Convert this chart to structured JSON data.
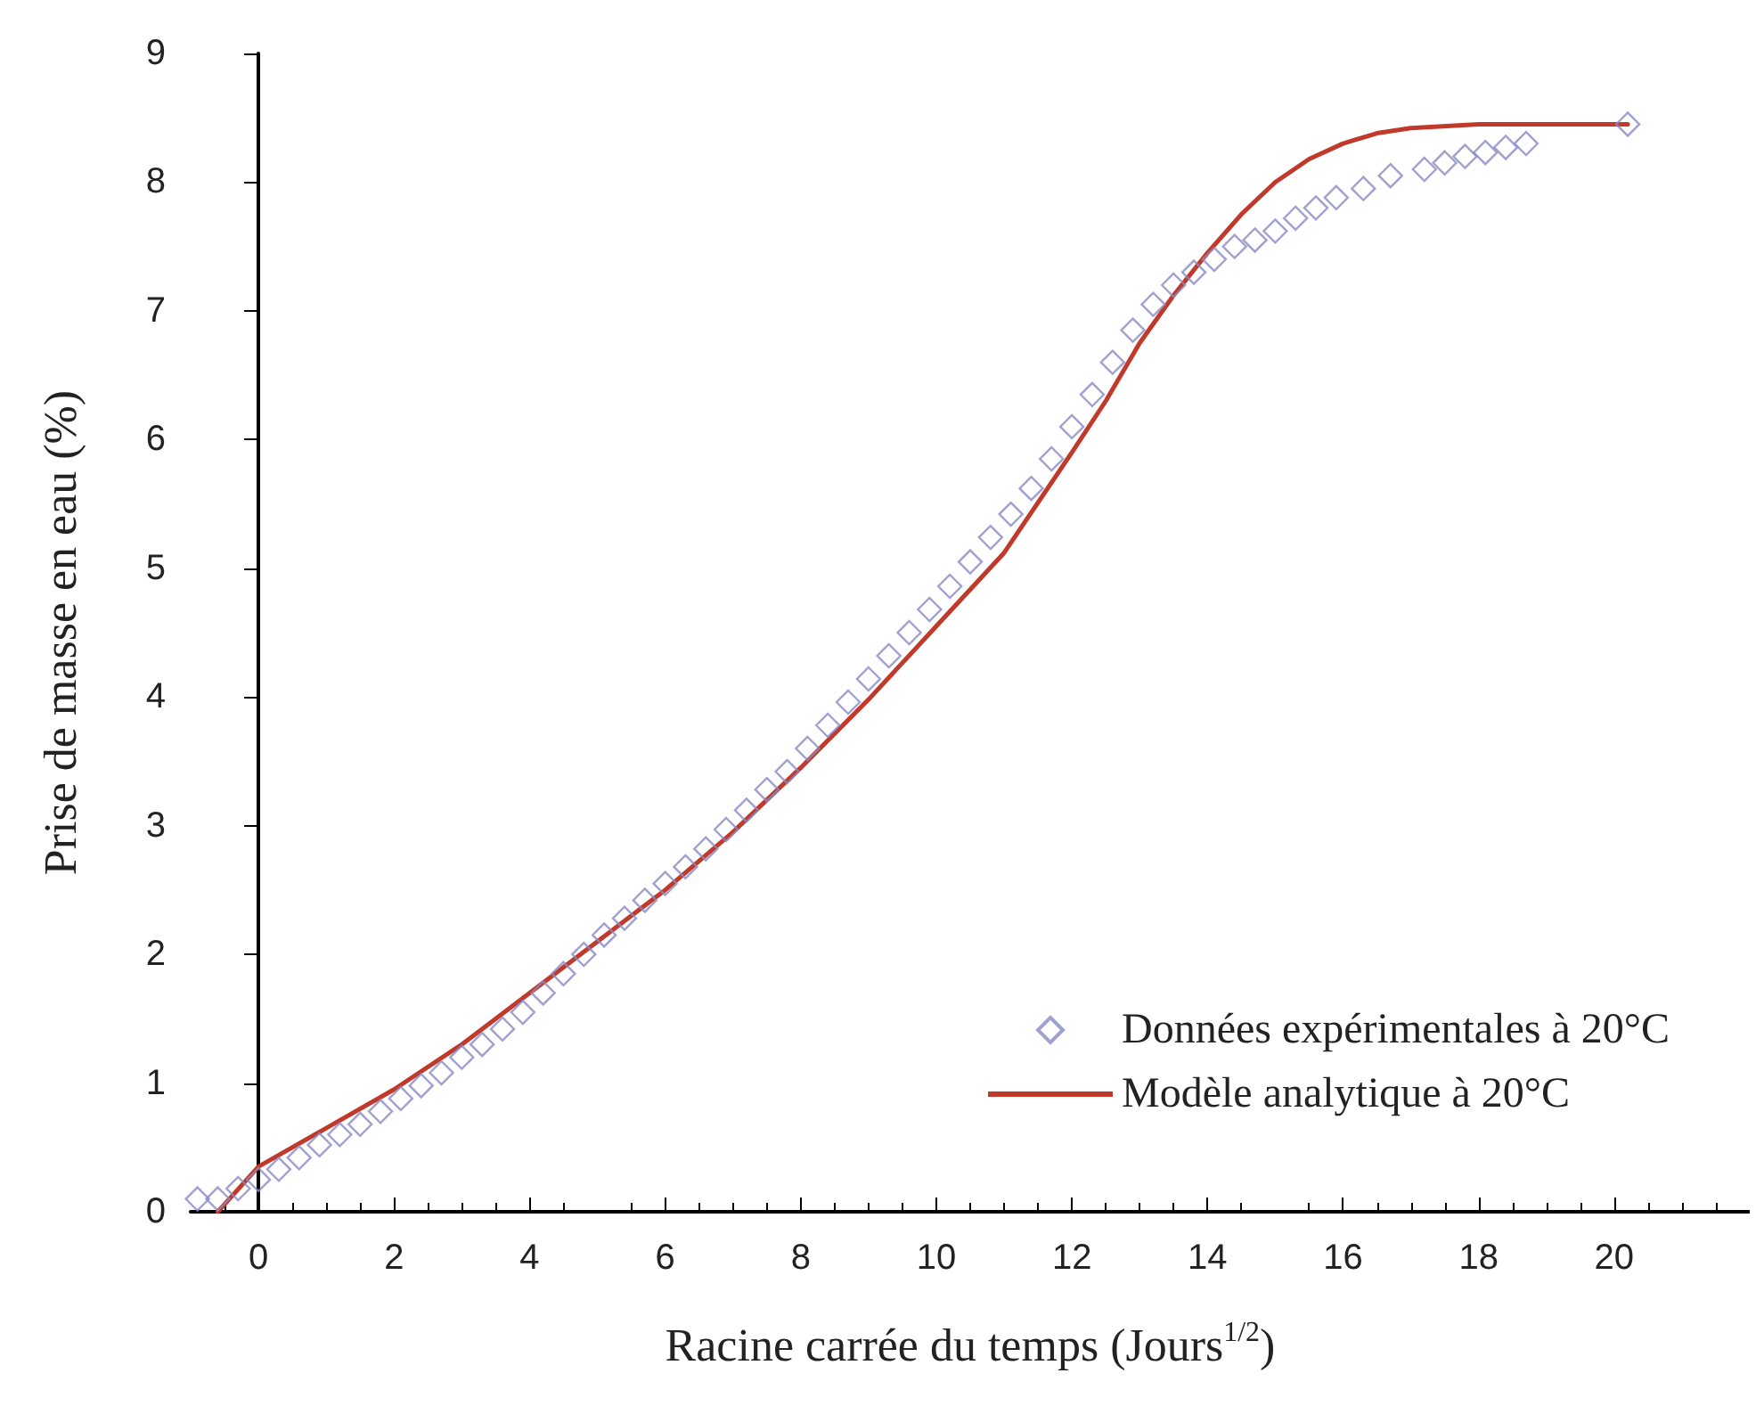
{
  "chart_data": {
    "type": "scatter",
    "xlabel": "Racine carrée du temps (Jours$^{1/2}$)",
    "ylabel": "Prise de masse en eau (%)",
    "xlim": [
      -1,
      22
    ],
    "ylim": [
      0,
      9
    ],
    "xticks": [
      0,
      2,
      4,
      6,
      8,
      10,
      12,
      14,
      16,
      18,
      20
    ],
    "yticks": [
      0,
      1,
      2,
      3,
      4,
      5,
      6,
      7,
      8,
      9
    ],
    "grid": false,
    "legend": "bottom right",
    "series": [
      {
        "name": "Données expérimentales à 20°C",
        "marker": "diamond",
        "color": "#8a8ac4",
        "x": [
          -0.9,
          -0.6,
          -0.3,
          0,
          0.3,
          0.6,
          0.9,
          1.2,
          1.5,
          1.8,
          2.1,
          2.4,
          2.7,
          3,
          3.3,
          3.6,
          3.9,
          4.2,
          4.5,
          4.8,
          5.1,
          5.4,
          5.7,
          6,
          6.3,
          6.6,
          6.9,
          7.2,
          7.5,
          7.8,
          8.1,
          8.4,
          8.7,
          9,
          9.3,
          9.6,
          9.9,
          10.2,
          10.5,
          10.8,
          11.1,
          11.4,
          11.7,
          12,
          12.3,
          12.6,
          12.9,
          13.2,
          13.5,
          13.8,
          14.1,
          14.4,
          14.7,
          15,
          15.3,
          15.6,
          15.9,
          16.3,
          16.7,
          17.2,
          17.5,
          17.8,
          18.1,
          18.4,
          18.7,
          20.2
        ],
        "values": [
          0.1,
          0.1,
          0.18,
          0.25,
          0.33,
          0.42,
          0.52,
          0.6,
          0.68,
          0.78,
          0.88,
          0.98,
          1.08,
          1.2,
          1.3,
          1.42,
          1.55,
          1.7,
          1.85,
          2.0,
          2.15,
          2.28,
          2.42,
          2.55,
          2.68,
          2.82,
          2.97,
          3.12,
          3.28,
          3.42,
          3.6,
          3.78,
          3.96,
          4.14,
          4.32,
          4.5,
          4.68,
          4.86,
          5.05,
          5.24,
          5.42,
          5.62,
          5.85,
          6.1,
          6.35,
          6.6,
          6.85,
          7.05,
          7.2,
          7.3,
          7.4,
          7.5,
          7.55,
          7.62,
          7.72,
          7.8,
          7.88,
          7.95,
          8.05,
          8.1,
          8.15,
          8.2,
          8.23,
          8.27,
          8.3,
          8.45
        ]
      },
      {
        "name": "Modèle analytique à 20°C",
        "type": "line",
        "marker": "none",
        "line_style": "solid",
        "color": "#c0392b",
        "x": [
          -0.6,
          0,
          1,
          2,
          3,
          4,
          5,
          6,
          7,
          8,
          9,
          10,
          11,
          12,
          12.5,
          13,
          13.5,
          14,
          14.5,
          15,
          15.5,
          16,
          16.5,
          17,
          18,
          20.2
        ],
        "values": [
          0,
          0.35,
          0.65,
          0.95,
          1.3,
          1.7,
          2.1,
          2.5,
          2.95,
          3.45,
          3.98,
          4.55,
          5.12,
          5.9,
          6.3,
          6.75,
          7.12,
          7.45,
          7.75,
          8.0,
          8.18,
          8.3,
          8.38,
          8.42,
          8.45,
          8.45
        ]
      }
    ]
  }
}
